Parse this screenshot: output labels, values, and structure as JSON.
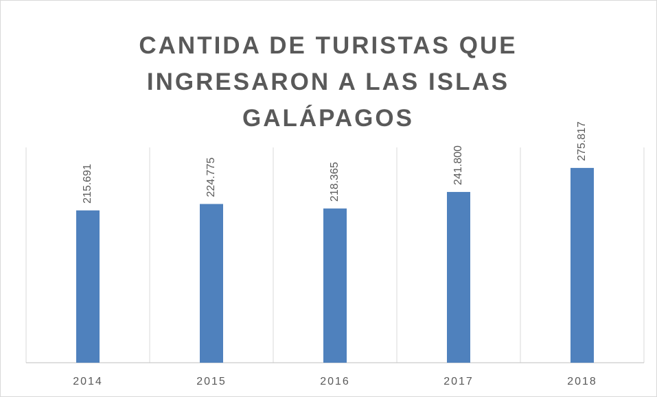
{
  "chart_data": {
    "type": "bar",
    "title": "CANTIDA DE TURISTAS QUE INGRESARON A LAS ISLAS GALÁPAGOS",
    "categories": [
      "2014",
      "2015",
      "2016",
      "2017",
      "2018"
    ],
    "values": [
      215691,
      224775,
      218365,
      241800,
      275817
    ],
    "value_labels": [
      "215.691",
      "224.775",
      "218.365",
      "241.800",
      "275.817"
    ],
    "color": "#4f81bd",
    "ylim": [
      0,
      300000
    ],
    "grid": true
  }
}
